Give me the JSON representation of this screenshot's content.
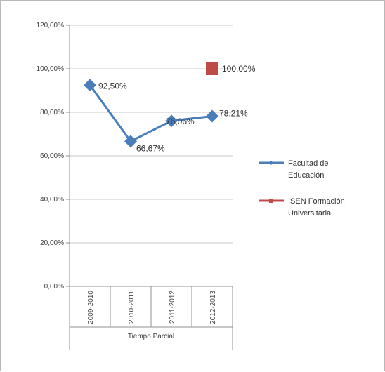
{
  "chart_data": {
    "type": "line",
    "categories": [
      "2009-2010",
      "2010-2011",
      "2011-2012",
      "2012-2013"
    ],
    "category_group_label": "Tiempo Parcial",
    "ylim": [
      0,
      120
    ],
    "yticks": [
      0,
      20,
      40,
      60,
      80,
      100,
      120
    ],
    "ytick_labels": [
      "0,00%",
      "20,00%",
      "40,00%",
      "60,00%",
      "80,00%",
      "100,00%",
      "120,00%"
    ],
    "grid": true,
    "legend_position": "right",
    "series": [
      {
        "name": "Facultad de Educación",
        "legend_lines": [
          "Facultad de",
          "Educación"
        ],
        "color": "#4a7ebb",
        "marker": "diamond",
        "values": [
          92.5,
          66.67,
          76.06,
          78.21
        ],
        "labels": [
          "92,50%",
          "66,67%",
          "76,06%",
          "78,21%"
        ]
      },
      {
        "name": "ISEN Formación Universitaria",
        "legend_lines": [
          "ISEN Formación",
          "Universitaria"
        ],
        "color": "#be4b48",
        "marker": "square",
        "values": [
          null,
          null,
          null,
          100
        ],
        "labels": [
          "",
          "",
          "",
          "100,00%"
        ]
      }
    ]
  }
}
